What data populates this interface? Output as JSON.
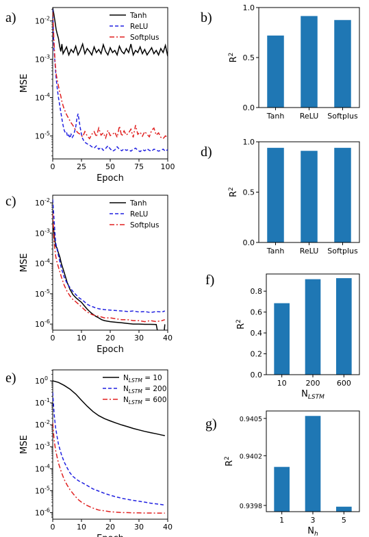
{
  "panels": [
    {
      "id": "a",
      "label": "a)",
      "type": "line",
      "scale": "log",
      "xlabel": "Epoch",
      "ylabel": "MSE",
      "xlim": [
        0,
        100
      ],
      "ylim_exp": [
        -5.6,
        -1.65
      ],
      "xticks": [
        0,
        25,
        50,
        75,
        100
      ],
      "yticks": [
        {
          "exp": -2,
          "text": "10"
        },
        {
          "exp": -3,
          "text": "10"
        },
        {
          "exp": -4,
          "text": "10"
        },
        {
          "exp": -5,
          "text": "10"
        }
      ],
      "ytick_sup": [
        "-2",
        "-3",
        "-4",
        "-5"
      ],
      "legend": "top-right",
      "series": [
        {
          "name": "Tanh",
          "color": "#000000",
          "style": "solid",
          "x": [
            0,
            1,
            2,
            3,
            4,
            5,
            6,
            7,
            8,
            9,
            10,
            12,
            14,
            16,
            18,
            20,
            22,
            24,
            26,
            28,
            30,
            32,
            34,
            36,
            38,
            40,
            42,
            44,
            46,
            48,
            50,
            52,
            54,
            56,
            58,
            60,
            62,
            64,
            66,
            68,
            70,
            72,
            74,
            76,
            78,
            80,
            82,
            84,
            86,
            88,
            90,
            92,
            94,
            96,
            98,
            100
          ],
          "y": [
            0.022,
            0.015,
            0.0095,
            0.006,
            0.0045,
            0.0035,
            0.0022,
            0.0016,
            0.0025,
            0.0014,
            0.0016,
            0.0021,
            0.0013,
            0.0018,
            0.0015,
            0.0022,
            0.0013,
            0.0017,
            0.0025,
            0.0014,
            0.0019,
            0.0016,
            0.0013,
            0.0021,
            0.0015,
            0.0018,
            0.0014,
            0.0024,
            0.0016,
            0.0013,
            0.002,
            0.0015,
            0.0017,
            0.0013,
            0.0022,
            0.0016,
            0.0014,
            0.0019,
            0.0015,
            0.0025,
            0.0013,
            0.0017,
            0.0015,
            0.0021,
            0.0014,
            0.0018,
            0.0013,
            0.0016,
            0.002,
            0.0014,
            0.0017,
            0.0013,
            0.0019,
            0.0015,
            0.0023,
            0.0012
          ]
        },
        {
          "name": "ReLU",
          "color": "#1f1fe0",
          "style": "dash",
          "x": [
            0,
            1,
            2,
            3,
            4,
            5,
            6,
            7,
            8,
            9,
            10,
            11,
            12,
            13,
            14,
            15,
            16,
            17,
            18,
            19,
            20,
            21,
            22,
            23,
            24,
            25,
            26,
            27,
            28,
            29,
            30,
            32,
            34,
            36,
            38,
            40,
            42,
            44,
            46,
            48,
            50,
            52,
            54,
            56,
            58,
            60,
            62,
            64,
            66,
            68,
            70,
            72,
            74,
            76,
            78,
            80,
            82,
            84,
            86,
            88,
            90,
            92,
            94,
            96,
            98,
            100
          ],
          "y": [
            0.02,
            0.002,
            0.00075,
            0.00032,
            0.00017,
            0.0001,
            6.5e-05,
            4.2e-05,
            2.8e-05,
            1.9e-05,
            1.4e-05,
            1.2e-05,
            1.25e-05,
            9.5e-06,
            1.05e-05,
            8.8e-06,
            1.1e-05,
            9.2e-06,
            1.02e-05,
            1.3e-05,
            1.7e-05,
            2.8e-05,
            3.8e-05,
            2.5e-05,
            1.6e-05,
            1.1e-05,
            8.5e-06,
            7.5e-06,
            6.8e-06,
            6.5e-06,
            6.2e-06,
            5.8e-06,
            5.2e-06,
            4.8e-06,
            5.5e-06,
            4.5e-06,
            5e-06,
            4.2e-06,
            4.7e-06,
            5.5e-06,
            4.6e-06,
            4e-06,
            4.3e-06,
            5.2e-06,
            4.5e-06,
            4.1e-06,
            4.6e-06,
            4.2e-06,
            4.4e-06,
            4e-06,
            4.5e-06,
            4.8e-06,
            4.2e-06,
            3.9e-06,
            4.4e-06,
            4.1e-06,
            4.6e-06,
            4.2e-06,
            4e-06,
            4.5e-06,
            4.3e-06,
            4e-06,
            4.2e-06,
            4.5e-06,
            4e-06,
            4.4e-06
          ]
        },
        {
          "name": "Softplus",
          "color": "#e01f1f",
          "style": "dashdot",
          "x": [
            0,
            1,
            2,
            3,
            4,
            5,
            6,
            7,
            8,
            9,
            10,
            12,
            14,
            16,
            18,
            20,
            22,
            24,
            26,
            28,
            30,
            32,
            34,
            36,
            38,
            40,
            42,
            44,
            46,
            48,
            50,
            52,
            54,
            56,
            58,
            60,
            62,
            64,
            66,
            68,
            70,
            72,
            74,
            76,
            78,
            80,
            82,
            84,
            86,
            88,
            90,
            92,
            94,
            96,
            98,
            100
          ],
          "y": [
            0.017,
            0.0035,
            0.00085,
            0.00042,
            0.00028,
            0.0002,
            0.00014,
            0.00011,
            8e-05,
            6.2e-05,
            5e-05,
            3.6e-05,
            2.8e-05,
            2.2e-05,
            1.8e-05,
            1.4e-05,
            1.2e-05,
            1.1e-05,
            9.5e-06,
            1.3e-05,
            1e-05,
            8.5e-06,
            1.1e-05,
            1.3e-05,
            9.5e-06,
            1.6e-05,
            1.05e-05,
            1.2e-05,
            8.8e-06,
            1.4e-05,
            1.02e-05,
            1.1e-05,
            1.25e-05,
            9.2e-06,
            1.8e-05,
            9.8e-06,
            1.35e-05,
            1.05e-05,
            1.2e-05,
            1.5e-05,
            9.2e-06,
            1.9e-05,
            1.1e-05,
            1.25e-05,
            9.8e-06,
            1.3e-05,
            1.1e-05,
            9.5e-06,
            1.4e-05,
            1.6e-05,
            1.05e-05,
            1.2e-05,
            9.2e-06,
            8.5e-06,
            1e-05,
            9.2e-06
          ]
        }
      ]
    },
    {
      "id": "b",
      "label": "b)",
      "type": "bar",
      "ylabel": "R",
      "ylabel_sup": "2",
      "categories": [
        "Tanh",
        "ReLU",
        "Softplus"
      ],
      "values": [
        0.72,
        0.915,
        0.875
      ],
      "ylim": [
        0,
        1.0
      ],
      "yticks": [
        0.0,
        0.5,
        1.0
      ],
      "ytick_text": [
        "0.0",
        "0.5",
        "1.0"
      ],
      "bar_color": "#1f77b4"
    },
    {
      "id": "c",
      "label": "c)",
      "type": "line",
      "scale": "log",
      "xlabel": "Epoch",
      "ylabel": "MSE",
      "xlim": [
        0,
        40
      ],
      "ylim_exp": [
        -6.2,
        -1.75
      ],
      "xticks": [
        0,
        10,
        20,
        30,
        40
      ],
      "yticks": [
        {
          "exp": -2,
          "text": "10"
        },
        {
          "exp": -3,
          "text": "10"
        },
        {
          "exp": -4,
          "text": "10"
        },
        {
          "exp": -5,
          "text": "10"
        },
        {
          "exp": -6,
          "text": "10"
        }
      ],
      "ytick_sup": [
        "-2",
        "-3",
        "-4",
        "-5",
        "-6"
      ],
      "legend": "top-right",
      "series": [
        {
          "name": "Tanh",
          "color": "#000000",
          "style": "solid",
          "x": [
            0,
            0.5,
            1,
            1.5,
            2,
            2.5,
            3,
            4,
            5,
            6,
            7,
            8,
            9,
            10,
            11,
            12,
            13,
            14,
            15,
            16,
            17,
            18,
            20,
            22,
            24,
            26,
            28,
            30,
            32,
            34,
            36,
            38,
            39
          ],
          "y": [
            0.0028,
            0.0009,
            0.00038,
            0.00032,
            0.00022,
            0.00016,
            0.0001,
            5e-05,
            2.4e-05,
            1.4e-05,
            9.5e-06,
            7.5e-06,
            6.2e-06,
            5.2e-06,
            4e-06,
            3.1e-06,
            2.5e-06,
            2.1e-06,
            1.8e-06,
            1.6e-06,
            1.4e-06,
            1.3e-06,
            1.2e-06,
            1.15e-06,
            1.1e-06,
            1.05e-06,
            1e-06,
            1e-06,
            9.8e-07,
            9.8e-07,
            9.7e-07,
            1e-07,
            9.8e-07
          ]
        },
        {
          "name": "ReLU",
          "color": "#1f1fe0",
          "style": "dash",
          "x": [
            0,
            0.5,
            1,
            1.5,
            2,
            3,
            4,
            5,
            6,
            7,
            8,
            9,
            10,
            11,
            12,
            13,
            14,
            15,
            16,
            18,
            20,
            22,
            24,
            26,
            28,
            30,
            32,
            34,
            36,
            38,
            39
          ],
          "y": [
            0.013,
            0.0025,
            0.0005,
            0.0003,
            0.00018,
            7e-05,
            3.5e-05,
            2.2e-05,
            1.6e-05,
            1.2e-05,
            9.5e-06,
            7.5e-06,
            6.5e-06,
            5.5e-06,
            4.5e-06,
            4e-06,
            3.7e-06,
            3.4e-06,
            3.2e-06,
            3e-06,
            2.9e-06,
            2.8e-06,
            2.7e-06,
            2.6e-06,
            2.7e-06,
            2.5e-06,
            2.6e-06,
            2.4e-06,
            2.6e-06,
            2.5e-06,
            2.7e-06
          ]
        },
        {
          "name": "Softplus",
          "color": "#e01f1f",
          "style": "dashdot",
          "x": [
            0,
            0.5,
            1,
            1.5,
            2,
            3,
            4,
            5,
            6,
            7,
            8,
            9,
            10,
            11,
            12,
            13,
            14,
            15,
            16,
            17,
            18,
            20,
            22,
            24,
            26,
            28,
            30,
            32,
            34,
            36,
            38,
            39
          ],
          "y": [
            0.0045,
            0.0005,
            0.00018,
            0.00011,
            7.5e-05,
            3.6e-05,
            1.9e-05,
            1.2e-05,
            8.5e-06,
            6.5e-06,
            5.5e-06,
            4.5e-06,
            3.7e-06,
            3e-06,
            2.5e-06,
            2.2e-06,
            2e-06,
            1.9e-06,
            1.8e-06,
            1.7e-06,
            1.6e-06,
            1.6e-06,
            1.5e-06,
            1.4e-06,
            1.4e-06,
            1.3e-06,
            1.3e-06,
            1.2e-06,
            1.3e-06,
            1.2e-06,
            1.3e-06,
            1.4e-06
          ]
        }
      ]
    },
    {
      "id": "d",
      "label": "d)",
      "type": "bar",
      "ylabel": "R",
      "ylabel_sup": "2",
      "categories": [
        "Tanh",
        "ReLU",
        "Softplus"
      ],
      "values": [
        0.94,
        0.91,
        0.94
      ],
      "ylim": [
        0,
        1.0
      ],
      "yticks": [
        0.0,
        0.5,
        1.0
      ],
      "ytick_text": [
        "0.0",
        "0.5",
        "1.0"
      ],
      "bar_color": "#1f77b4"
    },
    {
      "id": "e",
      "label": "e)",
      "type": "line",
      "scale": "log",
      "xlabel": "Epoch",
      "ylabel": "MSE",
      "xlim": [
        0,
        40
      ],
      "ylim_exp": [
        -6.3,
        0.5
      ],
      "xticks": [
        0,
        10,
        20,
        30,
        40
      ],
      "yticks": [
        {
          "exp": 0,
          "text": "10"
        },
        {
          "exp": -1,
          "text": "10"
        },
        {
          "exp": -2,
          "text": "10"
        },
        {
          "exp": -3,
          "text": "10"
        },
        {
          "exp": -4,
          "text": "10"
        },
        {
          "exp": -5,
          "text": "10"
        },
        {
          "exp": -6,
          "text": "10"
        }
      ],
      "ytick_sup": [
        "0",
        "-1",
        "-2",
        "-3",
        "-4",
        "-5",
        "-6"
      ],
      "legend": "top-right",
      "series": [
        {
          "name": "N",
          "name_sub": "LSTM",
          "name_suffix": " = 10",
          "color": "#000000",
          "style": "solid",
          "x": [
            0,
            2,
            4,
            6,
            8,
            10,
            12,
            14,
            16,
            18,
            20,
            22,
            24,
            26,
            28,
            30,
            32,
            34,
            36,
            38,
            39
          ],
          "y": [
            1.0,
            0.85,
            0.62,
            0.42,
            0.25,
            0.13,
            0.07,
            0.04,
            0.026,
            0.019,
            0.015,
            0.012,
            0.0098,
            0.0082,
            0.0068,
            0.0058,
            0.005,
            0.0044,
            0.0039,
            0.0034,
            0.0032
          ]
        },
        {
          "name": "N",
          "name_sub": "LSTM",
          "name_suffix": " = 200",
          "color": "#1f1fe0",
          "style": "dash",
          "x": [
            0,
            0.5,
            1,
            1.5,
            2,
            3,
            4,
            5,
            6,
            7,
            8,
            9,
            10,
            12,
            14,
            16,
            18,
            20,
            22,
            24,
            26,
            28,
            30,
            32,
            34,
            36,
            38,
            39
          ],
          "y": [
            0.3,
            0.03,
            0.0075,
            0.003,
            0.0013,
            0.00045,
            0.0002,
            0.00011,
            6.5e-05,
            4.5e-05,
            3.5e-05,
            2.8e-05,
            2.4e-05,
            1.7e-05,
            1.2e-05,
            9.5e-06,
            7.5e-06,
            6.2e-06,
            5.2e-06,
            4.5e-06,
            4e-06,
            3.6e-06,
            3.3e-06,
            3e-06,
            2.7e-06,
            2.5e-06,
            2.3e-06,
            2.2e-06
          ]
        },
        {
          "name": "N",
          "name_sub": "LSTM",
          "name_suffix": " = 600",
          "color": "#e01f1f",
          "style": "dashdot",
          "x": [
            0,
            0.5,
            1,
            1.5,
            2,
            3,
            4,
            5,
            6,
            7,
            8,
            9,
            10,
            12,
            14,
            16,
            18,
            20,
            22,
            24,
            26,
            28,
            30,
            32,
            34,
            36,
            38,
            39
          ],
          "y": [
            0.012,
            0.002,
            0.0007,
            0.00035,
            0.00018,
            7e-05,
            3.2e-05,
            1.8e-05,
            1.1e-05,
            7.5e-06,
            5.2e-06,
            3.8e-06,
            3e-06,
            2.1e-06,
            1.6e-06,
            1.3e-06,
            1.2e-06,
            1.1e-06,
            1.05e-06,
            1e-06,
            1e-06,
            9.8e-07,
            9.7e-07,
            9.6e-07,
            9.6e-07,
            9.5e-07,
            9.5e-07,
            9.5e-07
          ]
        }
      ]
    },
    {
      "id": "f",
      "label": "f)",
      "type": "bar",
      "ylabel": "R",
      "ylabel_sup": "2",
      "xlabel": "N",
      "xlabel_sub": "LSTM",
      "categories": [
        "10",
        "200",
        "600"
      ],
      "values": [
        0.685,
        0.915,
        0.925
      ],
      "ylim": [
        0,
        0.965
      ],
      "yticks": [
        0.0,
        0.2,
        0.4,
        0.6,
        0.8
      ],
      "ytick_text": [
        "0.0",
        "0.2",
        "0.4",
        "0.6",
        "0.8"
      ],
      "bar_color": "#1f77b4"
    },
    {
      "id": "g",
      "label": "g)",
      "type": "bar",
      "ylabel": "R",
      "ylabel_sup": "2",
      "xlabel": "N",
      "xlabel_sub": "h",
      "categories": [
        "1",
        "3",
        "5"
      ],
      "values": [
        0.94011,
        0.94052,
        0.93979
      ],
      "ylim": [
        0.93975,
        0.94056
      ],
      "yticks": [
        0.9398,
        0.9402,
        0.9405
      ],
      "ytick_text": [
        "0.9398",
        "0.9402",
        "0.9405"
      ],
      "bar_color": "#1f77b4"
    }
  ]
}
